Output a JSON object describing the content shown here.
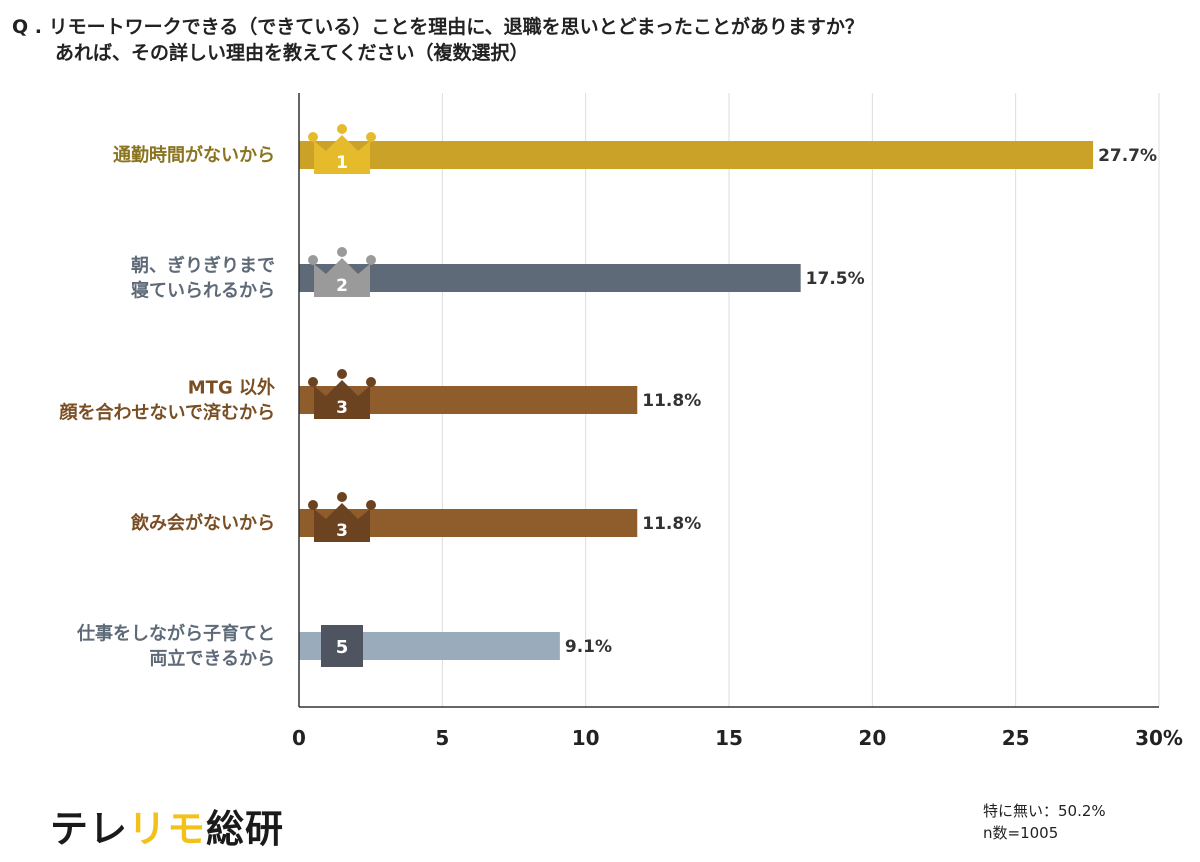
{
  "question": {
    "line1": "Q . リモートワークできる（できている）ことを理由に、退職を思いとどまったことがありますか？",
    "line2": "あれば、その詳しい理由を教えてください（複数選択）"
  },
  "colors": {
    "rank1": "#c9a227",
    "rank2": "#5e6a78",
    "rank3": "#8f5d2c",
    "rank5": "#9aabbb",
    "badge1": "#e6bb2b",
    "badge2": "#9a9a9a",
    "badge3": "#6b4321",
    "badge5": "#4e5560",
    "grid": "#dddddd",
    "axis": "#333333"
  },
  "chart_data": {
    "type": "bar",
    "orientation": "horizontal",
    "categories": [
      [
        "通勤時間がないから"
      ],
      [
        "朝、ぎりぎりまで",
        "寝ていられるから"
      ],
      [
        "MTG 以外",
        "顔を合わせないで済むから"
      ],
      [
        "飲み会がないから"
      ],
      [
        "仕事をしながら子育てと",
        "両立できるから"
      ]
    ],
    "values": [
      27.7,
      17.5,
      11.8,
      11.8,
      9.1
    ],
    "value_labels": [
      "27.7%",
      "17.5%",
      "11.8%",
      "11.8%",
      "9.1%"
    ],
    "ranks": [
      "1",
      "2",
      "3",
      "3",
      "5"
    ],
    "badge_types": [
      "crown",
      "crown",
      "crown",
      "crown",
      "square"
    ],
    "bar_colors": [
      "#c9a227",
      "#5e6a78",
      "#8f5d2c",
      "#8f5d2c",
      "#9aabbb"
    ],
    "label_colors": [
      "#8a7420",
      "#5e6a78",
      "#7a4e23",
      "#7a4e23",
      "#5e6a78"
    ],
    "badge_colors": [
      "#e6bb2b",
      "#9a9a9a",
      "#6b4321",
      "#6b4321",
      "#4e5560"
    ],
    "xlim": [
      0,
      30
    ],
    "xticks": [
      "0",
      "5",
      "10",
      "15",
      "20",
      "25",
      "30%"
    ],
    "xtick_values": [
      0,
      5,
      10,
      15,
      20,
      25,
      30
    ],
    "grid": true
  },
  "brand": {
    "part1": "テレ",
    "part2": "リモ",
    "part3": "総研"
  },
  "footnote": {
    "none": "特に無い：50.2%",
    "n": "n数=1005"
  }
}
